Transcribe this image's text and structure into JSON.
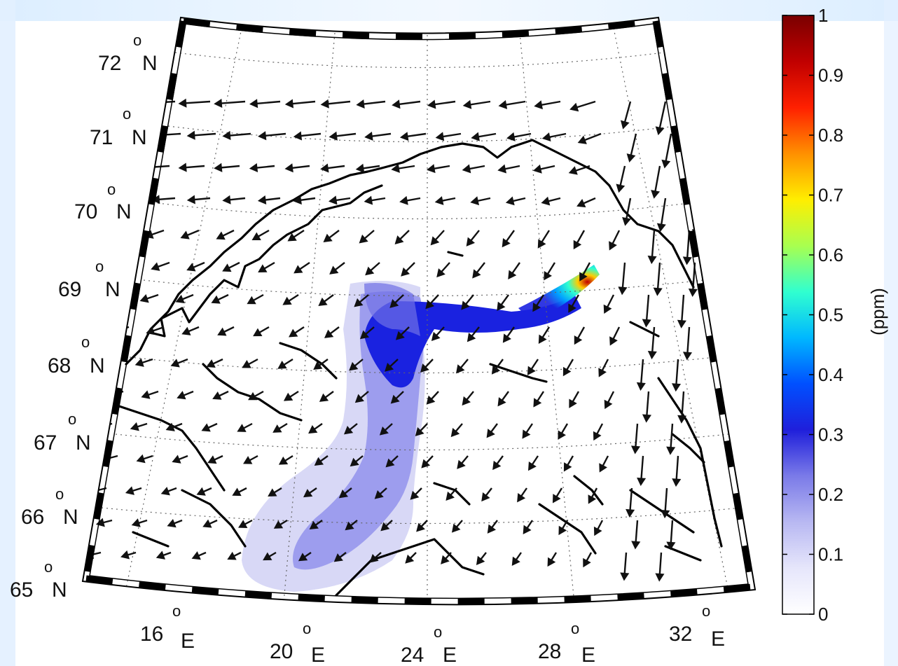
{
  "colorbar": {
    "unit_label": "(ppm)",
    "ticks": [
      "0",
      "0.1",
      "0.2",
      "0.3",
      "0.4",
      "0.5",
      "0.6",
      "0.7",
      "0.8",
      "0.9",
      "1"
    ],
    "min": 0,
    "max": 1,
    "colormap": [
      "#ffffff",
      "#e6e6fb",
      "#b8b8f2",
      "#7a7ae8",
      "#1f1fdb",
      "#0050ff",
      "#00b8ff",
      "#30ffd0",
      "#a8ff50",
      "#ffee00",
      "#ff9000",
      "#ff2000",
      "#c00000",
      "#7a0000"
    ]
  },
  "latitude_labels": [
    {
      "value": "72",
      "unit": "N"
    },
    {
      "value": "71",
      "unit": "N"
    },
    {
      "value": "70",
      "unit": "N"
    },
    {
      "value": "69",
      "unit": "N"
    },
    {
      "value": "68",
      "unit": "N"
    },
    {
      "value": "67",
      "unit": "N"
    },
    {
      "value": "66",
      "unit": "N"
    },
    {
      "value": "65",
      "unit": "N"
    }
  ],
  "longitude_labels": [
    {
      "value": "16",
      "unit": "E"
    },
    {
      "value": "20",
      "unit": "E"
    },
    {
      "value": "24",
      "unit": "E"
    },
    {
      "value": "28",
      "unit": "E"
    },
    {
      "value": "32",
      "unit": "E"
    }
  ],
  "degree_symbol": "o",
  "colors": {
    "frame": "#000000",
    "grid": "#666666",
    "coast": "#000000",
    "arrow": "#111111",
    "plume_low": "#c9c9f3",
    "plume_mid": "#7a7ae6",
    "plume_high": "#1a22e0",
    "page_tint": "#dfefff"
  }
}
